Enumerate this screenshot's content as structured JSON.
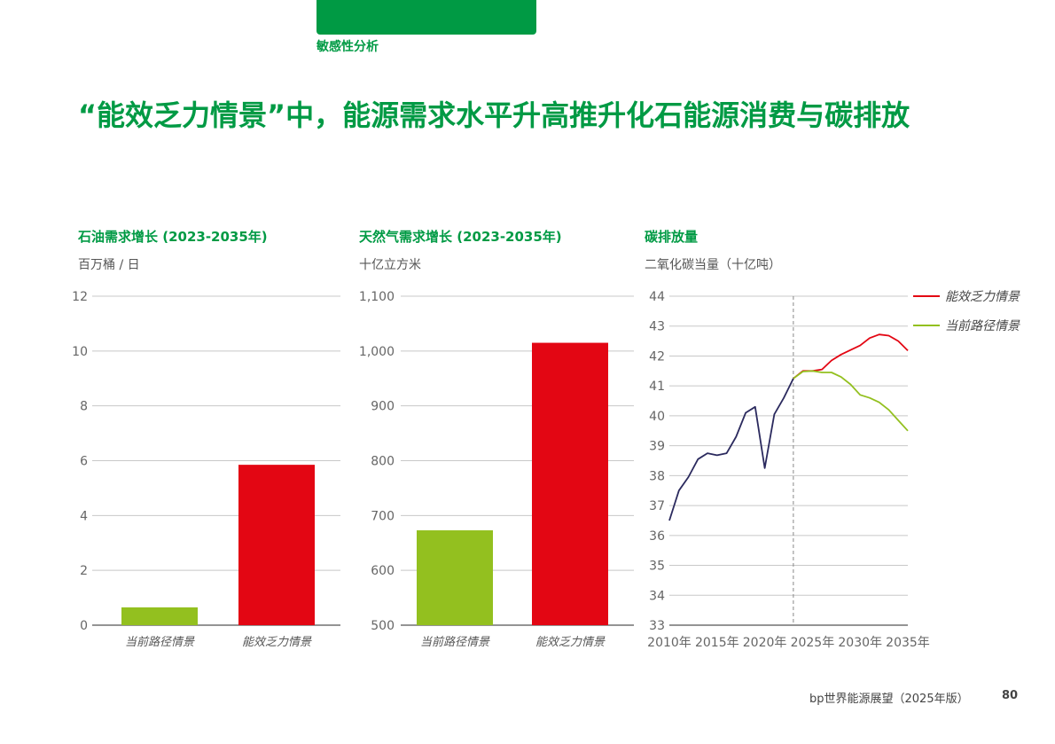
{
  "header": {
    "accent_color": "#009a44",
    "section": "敏感性分析",
    "title": "“能效乏力情景”中，能源需求水平升高推升化石能源消费与碳排放"
  },
  "footer": {
    "report": "bp世界能源展望（2025年版）",
    "page": "80"
  },
  "chart_data": [
    {
      "type": "bar",
      "title": "石油需求增长 (2023-2035年)",
      "unit": "百万桶 / 日",
      "categories": [
        "当前路径情景",
        "能效乏力情景"
      ],
      "values": [
        0.65,
        5.85
      ],
      "colors": [
        "#93c01f",
        "#e30613"
      ],
      "ylim": [
        0,
        12
      ],
      "yticks": [
        0,
        2,
        4,
        6,
        8,
        10,
        12
      ],
      "ytick_labels": [
        "0",
        "2",
        "4",
        "6",
        "8",
        "10",
        "12"
      ],
      "grid": true
    },
    {
      "type": "bar",
      "title": "天然气需求增长 (2023-2035年)",
      "unit": "十亿立方米",
      "categories": [
        "当前路径情景",
        "能效乏力情景"
      ],
      "values": [
        673,
        1015
      ],
      "colors": [
        "#93c01f",
        "#e30613"
      ],
      "ylim": [
        500,
        1100
      ],
      "yticks": [
        500,
        600,
        700,
        800,
        900,
        1000,
        1100
      ],
      "ytick_labels": [
        "500",
        "600",
        "700",
        "800",
        "900",
        "1,000",
        "1,100"
      ],
      "grid": true
    },
    {
      "type": "line",
      "title": "碳排放量",
      "unit": "二氧化碳当量（十亿吨）",
      "xlim": [
        2010,
        2035
      ],
      "ylim": [
        33,
        44
      ],
      "yticks": [
        33,
        34,
        35,
        36,
        37,
        38,
        39,
        40,
        41,
        42,
        43,
        44
      ],
      "xticks": [
        2010,
        2015,
        2020,
        2025,
        2030,
        2035
      ],
      "xtick_labels": [
        "2010年",
        "2015年",
        "2020年",
        "2025年",
        "2030年",
        "2035年"
      ],
      "divider_x": 2023,
      "grid": true,
      "legend_position": "right",
      "series": [
        {
          "name": "",
          "color": "#2b2a5e",
          "x": [
            2010,
            2011,
            2012,
            2013,
            2014,
            2015,
            2016,
            2017,
            2018,
            2019,
            2020,
            2021,
            2022,
            2023
          ],
          "y": [
            36.5,
            37.5,
            37.95,
            38.55,
            38.75,
            38.68,
            38.75,
            39.3,
            40.1,
            40.3,
            38.25,
            40.05,
            40.6,
            41.25
          ]
        },
        {
          "name": "能效乏力情景",
          "color": "#e30613",
          "x": [
            2023,
            2024,
            2025,
            2026,
            2027,
            2028,
            2029,
            2030,
            2031,
            2032,
            2033,
            2034,
            2035
          ],
          "y": [
            41.25,
            41.5,
            41.5,
            41.55,
            41.85,
            42.05,
            42.2,
            42.35,
            42.6,
            42.72,
            42.68,
            42.5,
            42.18
          ]
        },
        {
          "name": "当前路径情景",
          "color": "#93c01f",
          "x": [
            2023,
            2024,
            2025,
            2026,
            2027,
            2028,
            2029,
            2030,
            2031,
            2032,
            2033,
            2034,
            2035
          ],
          "y": [
            41.25,
            41.48,
            41.5,
            41.45,
            41.45,
            41.3,
            41.05,
            40.7,
            40.6,
            40.45,
            40.2,
            39.85,
            39.5
          ]
        }
      ]
    }
  ]
}
